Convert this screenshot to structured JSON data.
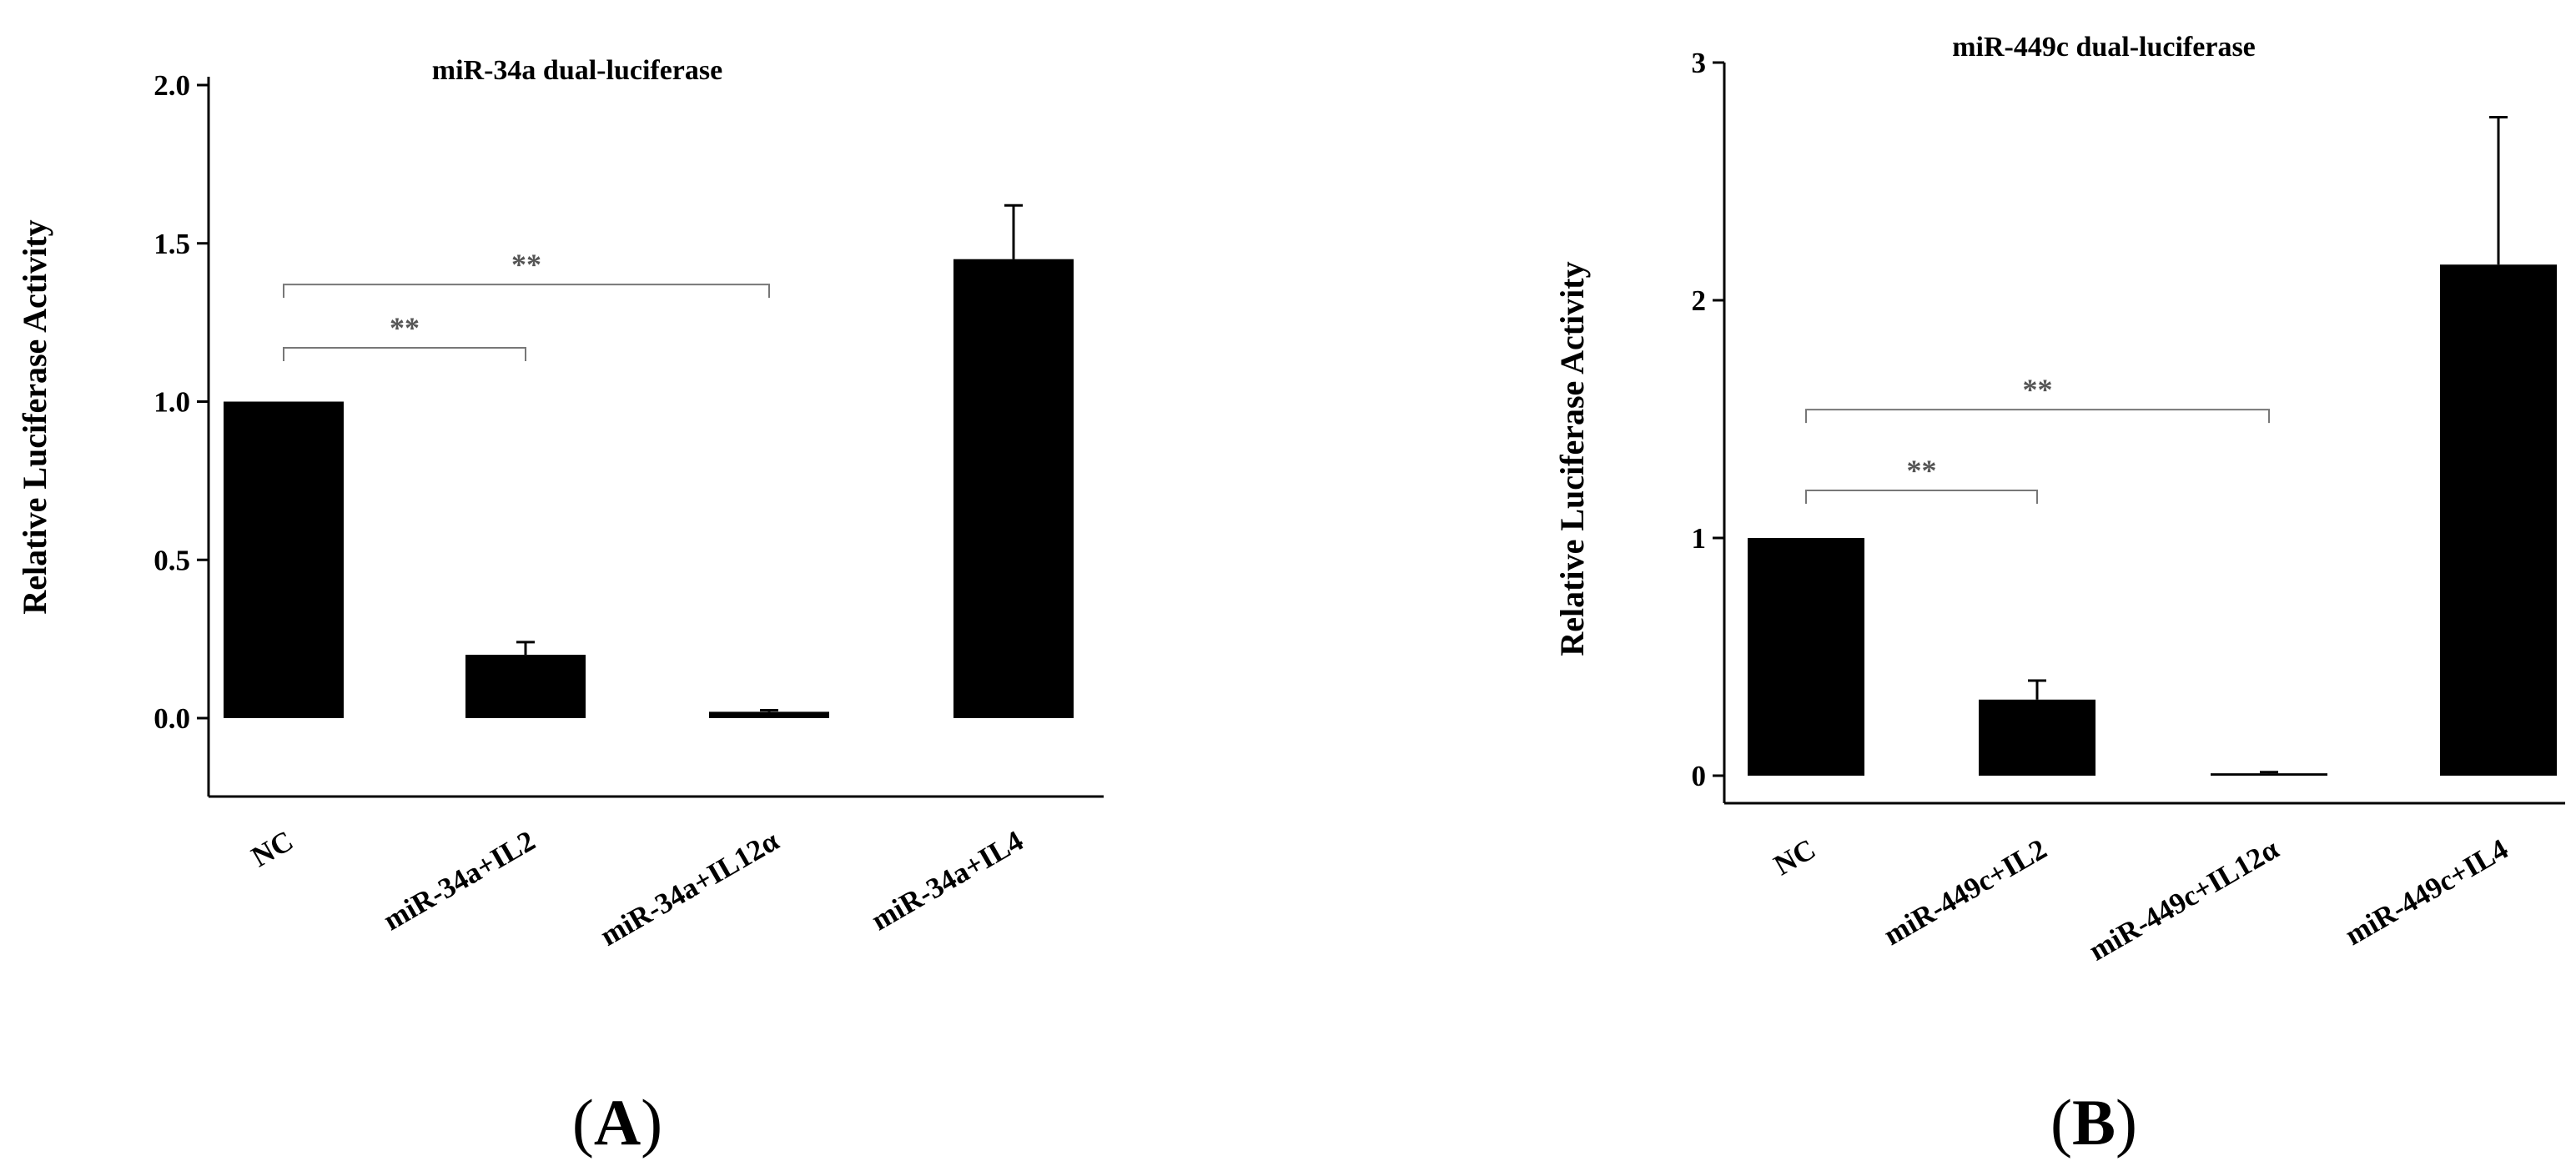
{
  "colors": {
    "bar": "#000000",
    "axis": "#000000",
    "bracket": "#777777",
    "significance": "#555555"
  },
  "chart_data": [
    {
      "type": "bar",
      "panel_label": "(A)",
      "panel_label_parts": {
        "open": "(",
        "letter": "A",
        "close": ")"
      },
      "title": "miR-34a dual-luciferase",
      "xlabel": "",
      "ylabel": "Relative Luciferase Activity",
      "ylim": [
        -0.25,
        2.0
      ],
      "yticks": [
        0.0,
        0.5,
        1.0,
        1.5,
        2.0
      ],
      "ytick_labels": [
        "0.0",
        "0.5",
        "1.0",
        "1.5",
        "2.0"
      ],
      "categories": [
        "NC",
        "miR-34a+IL2",
        "miR-34a+IL12α",
        "miR-34a+IL4"
      ],
      "values": [
        1.0,
        0.2,
        0.02,
        1.45
      ],
      "errors": [
        0.0,
        0.04,
        0.005,
        0.17
      ],
      "significance": [
        {
          "from": 0,
          "to": 1,
          "label": "**",
          "level": 1.17
        },
        {
          "from": 0,
          "to": 2,
          "label": "**",
          "level": 1.37
        }
      ],
      "grid": false
    },
    {
      "type": "bar",
      "panel_label": "(B)",
      "panel_label_parts": {
        "open": "(",
        "letter": "B",
        "close": ")"
      },
      "title": "miR-449c dual-luciferase",
      "xlabel": "",
      "ylabel": "Relative Luciferase Activity",
      "ylim": [
        -0.1,
        3.0
      ],
      "yticks": [
        0,
        1,
        2,
        3
      ],
      "ytick_labels": [
        "0",
        "1",
        "2",
        "3"
      ],
      "categories": [
        "NC",
        "miR-449c+IL2",
        "miR-449c+IL12α",
        "miR-449c+IL4"
      ],
      "values": [
        1.0,
        0.32,
        0.01,
        2.15
      ],
      "errors": [
        0.0,
        0.08,
        0.005,
        0.62
      ],
      "significance": [
        {
          "from": 0,
          "to": 1,
          "label": "**",
          "level": 1.2
        },
        {
          "from": 0,
          "to": 2,
          "label": "**",
          "level": 1.54
        }
      ],
      "grid": false
    }
  ]
}
